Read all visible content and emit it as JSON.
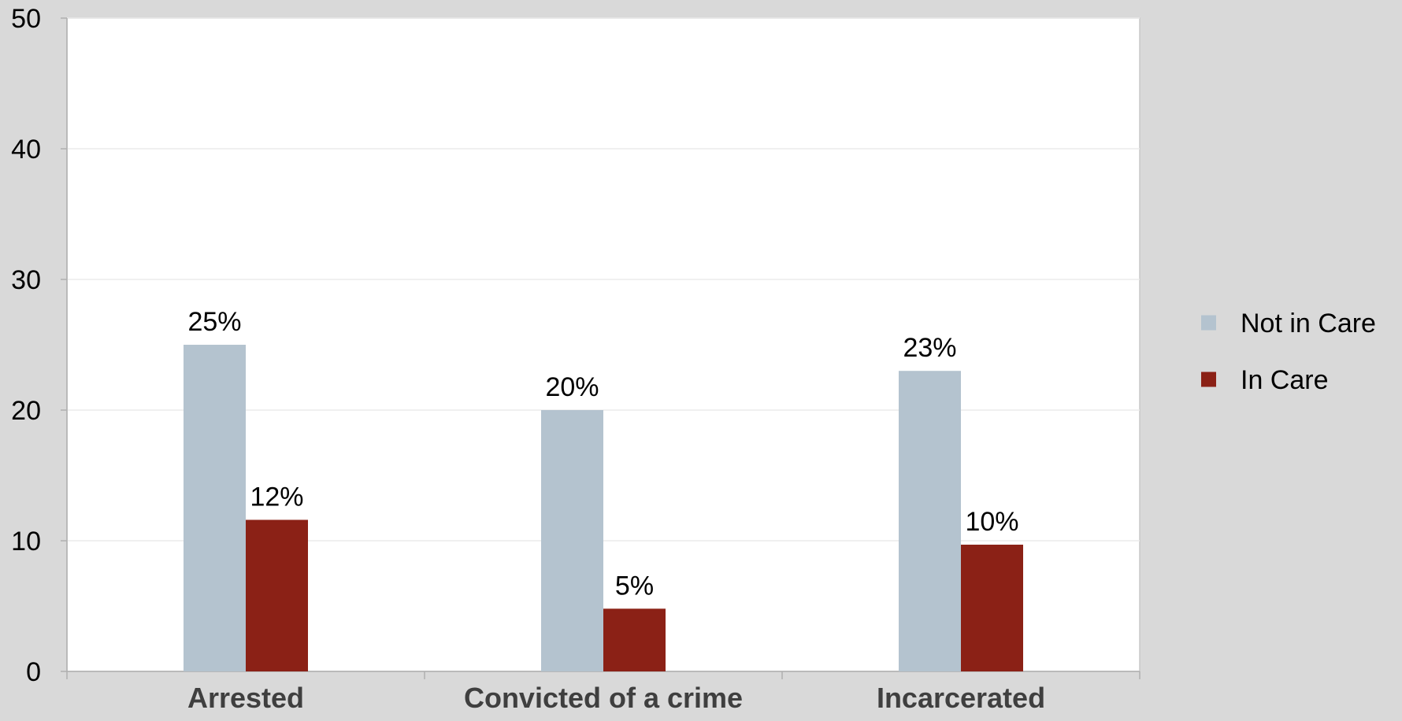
{
  "chart_data": {
    "type": "bar",
    "title": "",
    "xlabel": "",
    "ylabel": "",
    "categories": [
      "Arrested",
      "Convicted of a crime",
      "Incarcerated"
    ],
    "series": [
      {
        "name": "Not in Care",
        "values": [
          25,
          20,
          23
        ],
        "labels": [
          "25%",
          "20%",
          "23%"
        ],
        "color": "#b4c3cf"
      },
      {
        "name": "In Care",
        "values": [
          11.6,
          4.8,
          9.7
        ],
        "labels": [
          "12%",
          "5%",
          "10%"
        ],
        "color": "#8b2116"
      }
    ],
    "ylim": [
      0,
      50
    ],
    "yticks": [
      "0",
      "10",
      "20",
      "30",
      "40",
      "50"
    ],
    "grid": true,
    "legend_position": "right",
    "plot_background": "#ffffff",
    "page_background": "#d9d9d9"
  }
}
